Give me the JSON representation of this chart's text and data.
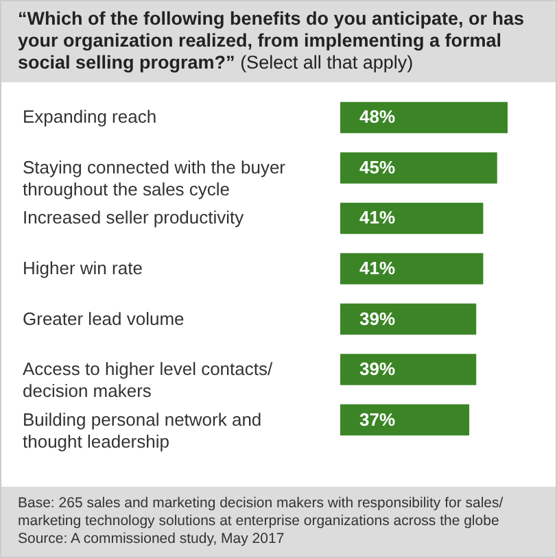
{
  "chart_data": {
    "type": "bar",
    "orientation": "horizontal",
    "title": "“Which of the following benefits do you anticipate, or has your organization realized, from implementing a formal social selling program?”",
    "subtitle": "(Select all that apply)",
    "categories": [
      "Expanding reach",
      "Staying connected with the buyer throughout the sales cycle",
      "Increased seller productivity",
      "Higher win rate",
      "Greater lead volume",
      "Access to higher level contacts/ decision makers",
      "Building personal network and thought leadership"
    ],
    "values": [
      48,
      45,
      41,
      41,
      39,
      39,
      37
    ],
    "value_labels": [
      "48%",
      "45%",
      "41%",
      "41%",
      "39%",
      "39%",
      "37%"
    ],
    "color": "#3b8526",
    "annotations": [
      "Base: 265 sales and marketing decision makers with responsibility for sales/ marketing technology solutions at enterprise organizations across the globe",
      "Source: A commissioned study, May 2017"
    ]
  }
}
